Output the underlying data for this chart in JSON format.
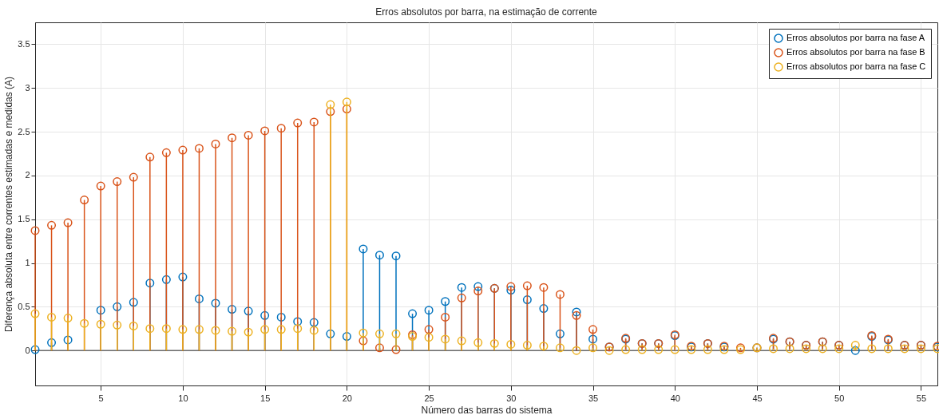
{
  "chart_data": {
    "type": "lollipop",
    "title": "Erros absolutos por barra, na estimação de corrente",
    "xlabel": "Número das barras do sistema",
    "ylabel": "Diferença absoluta entre correntes estimadas e medidas (A)",
    "x": [
      1,
      2,
      3,
      4,
      5,
      6,
      7,
      8,
      9,
      10,
      11,
      12,
      13,
      14,
      15,
      16,
      17,
      18,
      19,
      20,
      21,
      22,
      23,
      24,
      25,
      26,
      27,
      28,
      29,
      30,
      31,
      32,
      33,
      34,
      35,
      36,
      37,
      38,
      39,
      40,
      41,
      42,
      43,
      44,
      45,
      46,
      47,
      48,
      49,
      50,
      51,
      52,
      53,
      54,
      55,
      56
    ],
    "xlim": [
      1,
      56
    ],
    "xticks": [
      5,
      10,
      15,
      20,
      25,
      30,
      35,
      40,
      45,
      50,
      55
    ],
    "ylim": [
      -0.4,
      3.75
    ],
    "yticks": [
      0,
      0.5,
      1,
      1.5,
      2,
      2.5,
      3,
      3.5
    ],
    "grid": true,
    "legend": "top right",
    "marker": "circle",
    "line_style": "solid",
    "ref_lines": [
      {
        "axis": "y",
        "value": 0,
        "color": "#262626"
      }
    ],
    "series": [
      {
        "name": "Erros absolutos por barra na fase A",
        "color": "#0072bd",
        "values": [
          0.01,
          0.09,
          0.12,
          null,
          0.46,
          0.5,
          0.55,
          0.77,
          0.81,
          0.84,
          0.59,
          0.54,
          0.47,
          0.45,
          0.4,
          0.38,
          0.33,
          0.32,
          0.19,
          0.16,
          1.16,
          1.09,
          1.08,
          0.42,
          0.46,
          0.56,
          0.72,
          0.73,
          0.71,
          0.69,
          0.58,
          0.48,
          0.19,
          0.44,
          0.13,
          0.04,
          0.13,
          0.08,
          0.08,
          0.17,
          0.04,
          0.08,
          0.04,
          null,
          0.03,
          0.13,
          0.1,
          0.06,
          0.1,
          0.06,
          0.0,
          0.16,
          0.12,
          0.06,
          0.06,
          0.04
        ]
      },
      {
        "name": "Erros absolutos por barra na fase B",
        "color": "#d95319",
        "values": [
          1.37,
          1.43,
          1.46,
          1.72,
          1.88,
          1.93,
          1.98,
          2.21,
          2.26,
          2.29,
          2.31,
          2.36,
          2.43,
          2.46,
          2.51,
          2.54,
          2.6,
          2.61,
          2.73,
          2.76,
          0.11,
          0.03,
          0.01,
          0.18,
          0.24,
          0.38,
          0.6,
          0.68,
          0.71,
          0.73,
          0.74,
          0.72,
          0.64,
          0.4,
          0.24,
          0.04,
          0.14,
          0.08,
          0.08,
          0.18,
          0.05,
          0.08,
          0.05,
          0.03,
          0.03,
          0.14,
          0.1,
          0.06,
          0.1,
          0.06,
          null,
          0.17,
          0.13,
          0.06,
          0.06,
          0.05
        ]
      },
      {
        "name": "Erros absolutos por barra na fase C",
        "color": "#edb120",
        "values": [
          0.42,
          0.38,
          0.37,
          0.31,
          0.3,
          0.29,
          0.28,
          0.25,
          0.25,
          0.24,
          0.24,
          0.23,
          0.22,
          0.21,
          0.24,
          0.24,
          0.25,
          0.23,
          2.81,
          2.84,
          0.2,
          0.19,
          0.19,
          0.16,
          0.15,
          0.13,
          0.11,
          0.09,
          0.08,
          0.07,
          0.06,
          0.05,
          0.03,
          0.0,
          0.03,
          0.0,
          0.01,
          0.01,
          0.01,
          0.01,
          0.01,
          0.01,
          0.01,
          0.01,
          0.03,
          0.02,
          0.02,
          0.02,
          0.02,
          0.02,
          0.06,
          0.02,
          0.02,
          0.02,
          0.02,
          0.02
        ]
      }
    ]
  }
}
